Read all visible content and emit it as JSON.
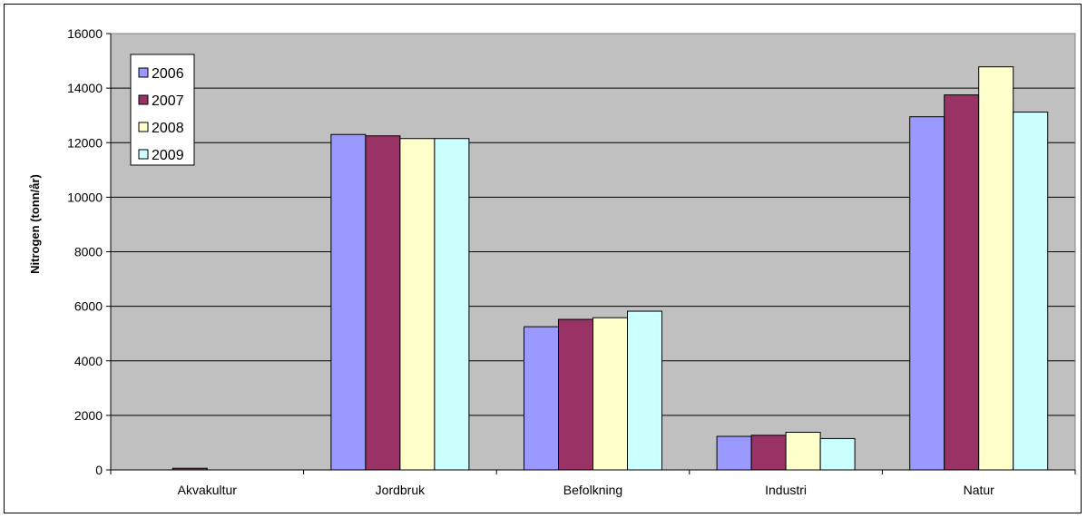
{
  "chart_data": {
    "type": "bar",
    "ylabel": "Nitrogen (tonn/år)",
    "xlabel": "",
    "ylim": [
      0,
      16000
    ],
    "yticks": [
      0,
      2000,
      4000,
      6000,
      8000,
      10000,
      12000,
      14000,
      16000
    ],
    "grid": true,
    "legend_placement": "top-left",
    "categories": [
      "Akvakultur",
      "Jordbruk",
      "Befolkning",
      "Industri",
      "Natur"
    ],
    "series": [
      {
        "name": "2006",
        "color": "#9999FF",
        "values": [
          0,
          12300,
          5250,
          1230,
          12950
        ]
      },
      {
        "name": "2007",
        "color": "#993366",
        "values": [
          60,
          12250,
          5520,
          1270,
          13750
        ]
      },
      {
        "name": "2008",
        "color": "#FFFFCC",
        "values": [
          0,
          12150,
          5580,
          1380,
          14780
        ]
      },
      {
        "name": "2009",
        "color": "#CCFFFF",
        "values": [
          0,
          12150,
          5820,
          1150,
          13120
        ]
      }
    ],
    "plot_background": "#C0C0C0"
  }
}
